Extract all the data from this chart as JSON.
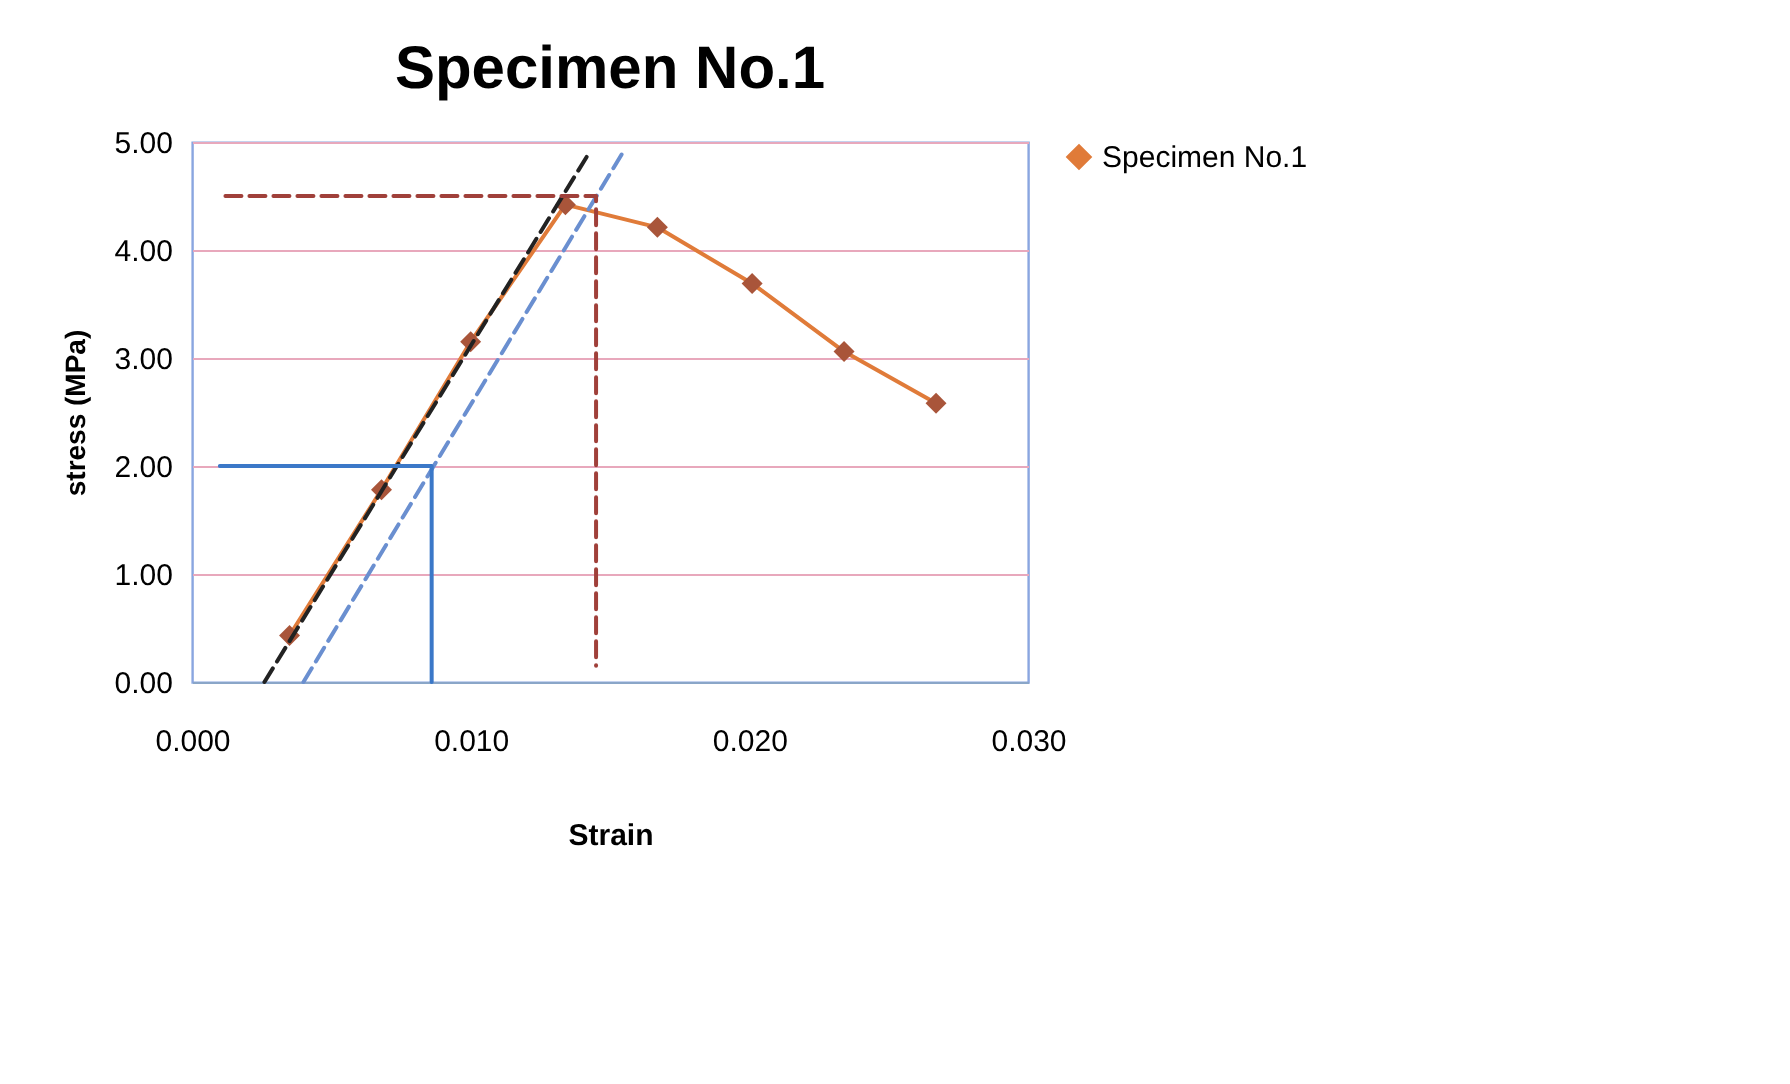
{
  "chart_data": {
    "type": "line",
    "title": "Specimen No.1",
    "xlabel": "Strain",
    "ylabel": "stress (MPa)",
    "xlim": [
      0,
      0.03
    ],
    "ylim": [
      0,
      5
    ],
    "xticks": [
      {
        "value": 0,
        "label": "0.000"
      },
      {
        "value": 0.01,
        "label": "0.010"
      },
      {
        "value": 0.02,
        "label": "0.020"
      },
      {
        "value": 0.03,
        "label": "0.030"
      }
    ],
    "yticks": [
      {
        "value": 0,
        "label": "0.00"
      },
      {
        "value": 1,
        "label": "1.00"
      },
      {
        "value": 2,
        "label": "2.00"
      },
      {
        "value": 3,
        "label": "3.00"
      },
      {
        "value": 4,
        "label": "4.00"
      },
      {
        "value": 5,
        "label": "5.00"
      }
    ],
    "grid": "y",
    "legend": "right",
    "series": [
      {
        "name": "Specimen No.1",
        "color": "#e07b39",
        "marker": "diamond",
        "x": [
          0.0035,
          0.0068,
          0.01,
          0.0134,
          0.0167,
          0.0201,
          0.0234,
          0.0267
        ],
        "values": [
          0.43,
          1.78,
          3.15,
          4.42,
          4.21,
          3.69,
          3.06,
          2.58
        ]
      },
      {
        "type": "line",
        "color": "#222222",
        "line_style": "dashed",
        "marker": "none",
        "x": [
          0.0026,
          0.0143
        ],
        "values": [
          0,
          4.92
        ]
      },
      {
        "type": "line",
        "color": "#6a8fd0",
        "line_style": "dashed",
        "marker": "none",
        "x": [
          0.004,
          0.0155
        ],
        "values": [
          0,
          4.92
        ]
      },
      {
        "type": "line",
        "color": "#3b78c8",
        "line_style": "solid",
        "marker": "none",
        "x": [
          0.001,
          0.0086,
          0.0086
        ],
        "values": [
          2,
          2,
          0
        ]
      },
      {
        "type": "line",
        "color": "#a0403a",
        "line_style": "dashed",
        "marker": "none",
        "x": [
          0.0012,
          0.0145,
          0.0145
        ],
        "values": [
          4.5,
          4.5,
          0.15
        ]
      }
    ]
  }
}
